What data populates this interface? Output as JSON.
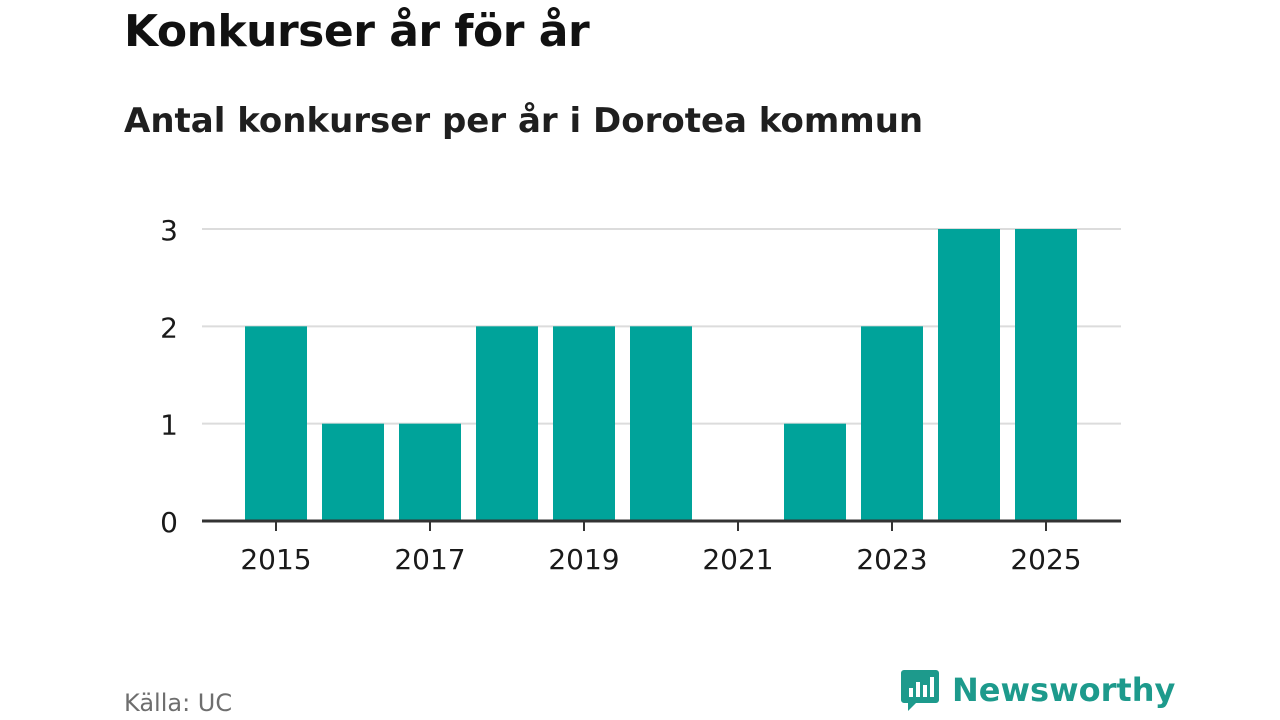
{
  "header": {
    "title": "Konkurser år för år",
    "subtitle": "Antal konkurser per år i Dorotea kommun"
  },
  "footer": {
    "source": "Källa: UC",
    "brand": "Newsworthy"
  },
  "colors": {
    "bar": "#00A39A",
    "grid": "#DCDCDC",
    "axis": "#333333",
    "brand": "#1D9A8C",
    "text": "#1a1a1a"
  },
  "logo_icon": "bar-chart-speech-bubble-icon",
  "chart_data": {
    "type": "bar",
    "title": "Konkurser år för år",
    "subtitle": "Antal konkurser per år i Dorotea kommun",
    "xlabel": "",
    "ylabel": "",
    "categories": [
      "2015",
      "2016",
      "2017",
      "2018",
      "2019",
      "2020",
      "2021",
      "2022",
      "2023",
      "2024",
      "2025"
    ],
    "values": [
      2,
      1,
      1,
      2,
      2,
      2,
      0,
      1,
      2,
      3,
      3
    ],
    "x_tick_labels": [
      "2015",
      "2017",
      "2019",
      "2021",
      "2023",
      "2025"
    ],
    "y_ticks": [
      0,
      1,
      2,
      3
    ],
    "ylim": [
      0,
      3
    ],
    "grid": true,
    "legend": "none"
  }
}
